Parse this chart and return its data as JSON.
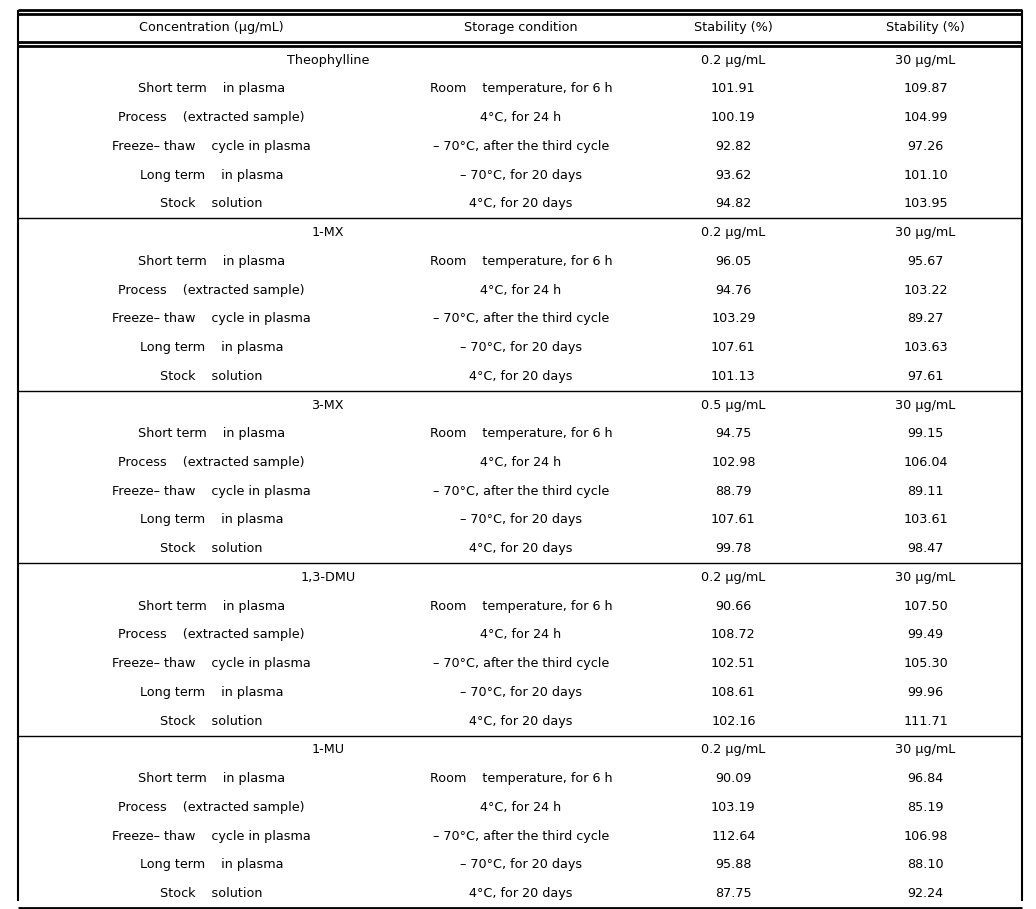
{
  "header": [
    "Concentration (μg/mL)",
    "Storage condition",
    "Stability (%)",
    "Stability (%)"
  ],
  "sections": [
    {
      "name": "Theophylline",
      "conc_low": "0.2 μg/mL",
      "conc_high": "30 μg/mL",
      "rows": [
        {
          "col1": "Short term    in plasma",
          "col2": "Room    temperature, for 6 h",
          "v1": "101.91",
          "v2": "109.87"
        },
        {
          "col1": "Process    (extracted sample)",
          "col2": "4°C, for 24 h",
          "v1": "100.19",
          "v2": "104.99"
        },
        {
          "col1": "Freeze– thaw    cycle in plasma",
          "col2": "– 70°C, after the third cycle",
          "v1": "92.82",
          "v2": "97.26"
        },
        {
          "col1": "Long term    in plasma",
          "col2": "– 70°C, for 20 days",
          "v1": "93.62",
          "v2": "101.10"
        },
        {
          "col1": "Stock    solution",
          "col2": "4°C, for 20 days",
          "v1": "94.82",
          "v2": "103.95"
        }
      ]
    },
    {
      "name": "1-MX",
      "conc_low": "0.2 μg/mL",
      "conc_high": "30 μg/mL",
      "rows": [
        {
          "col1": "Short term    in plasma",
          "col2": "Room    temperature, for 6 h",
          "v1": "96.05",
          "v2": "95.67"
        },
        {
          "col1": "Process    (extracted sample)",
          "col2": "4°C, for 24 h",
          "v1": "94.76",
          "v2": "103.22"
        },
        {
          "col1": "Freeze– thaw    cycle in plasma",
          "col2": "– 70°C, after the third cycle",
          "v1": "103.29",
          "v2": "89.27"
        },
        {
          "col1": "Long term    in plasma",
          "col2": "– 70°C, for 20 days",
          "v1": "107.61",
          "v2": "103.63"
        },
        {
          "col1": "Stock    solution",
          "col2": "4°C, for 20 days",
          "v1": "101.13",
          "v2": "97.61"
        }
      ]
    },
    {
      "name": "3-MX",
      "conc_low": "0.5 μg/mL",
      "conc_high": "30 μg/mL",
      "rows": [
        {
          "col1": "Short term    in plasma",
          "col2": "Room    temperature, for 6 h",
          "v1": "94.75",
          "v2": "99.15"
        },
        {
          "col1": "Process    (extracted sample)",
          "col2": "4°C, for 24 h",
          "v1": "102.98",
          "v2": "106.04"
        },
        {
          "col1": "Freeze– thaw    cycle in plasma",
          "col2": "– 70°C, after the third cycle",
          "v1": "88.79",
          "v2": "89.11"
        },
        {
          "col1": "Long term    in plasma",
          "col2": "– 70°C, for 20 days",
          "v1": "107.61",
          "v2": "103.61"
        },
        {
          "col1": "Stock    solution",
          "col2": "4°C, for 20 days",
          "v1": "99.78",
          "v2": "98.47"
        }
      ]
    },
    {
      "name": "1,3-DMU",
      "conc_low": "0.2 μg/mL",
      "conc_high": "30 μg/mL",
      "rows": [
        {
          "col1": "Short term    in plasma",
          "col2": "Room    temperature, for 6 h",
          "v1": "90.66",
          "v2": "107.50"
        },
        {
          "col1": "Process    (extracted sample)",
          "col2": "4°C, for 24 h",
          "v1": "108.72",
          "v2": "99.49"
        },
        {
          "col1": "Freeze– thaw    cycle in plasma",
          "col2": "– 70°C, after the third cycle",
          "v1": "102.51",
          "v2": "105.30"
        },
        {
          "col1": "Long term    in plasma",
          "col2": "– 70°C, for 20 days",
          "v1": "108.61",
          "v2": "99.96"
        },
        {
          "col1": "Stock    solution",
          "col2": "4°C, for 20 days",
          "v1": "102.16",
          "v2": "111.71"
        }
      ]
    },
    {
      "name": "1-MU",
      "conc_low": "0.2 μg/mL",
      "conc_high": "30 μg/mL",
      "rows": [
        {
          "col1": "Short term    in plasma",
          "col2": "Room    temperature, for 6 h",
          "v1": "90.09",
          "v2": "96.84"
        },
        {
          "col1": "Process    (extracted sample)",
          "col2": "4°C, for 24 h",
          "v1": "103.19",
          "v2": "85.19"
        },
        {
          "col1": "Freeze– thaw    cycle in plasma",
          "col2": "– 70°C, after the third cycle",
          "v1": "112.64",
          "v2": "106.98"
        },
        {
          "col1": "Long term    in plasma",
          "col2": "– 70°C, for 20 days",
          "v1": "95.88",
          "v2": "88.10"
        },
        {
          "col1": "Stock    solution",
          "col2": "4°C, for 20 days",
          "v1": "87.75",
          "v2": "92.24"
        }
      ]
    }
  ],
  "font_size": 9.2,
  "bg_color": "#ffffff",
  "line_color": "#000000",
  "text_color": "#000000",
  "fig_width": 10.36,
  "fig_height": 9.09,
  "dpi": 100
}
